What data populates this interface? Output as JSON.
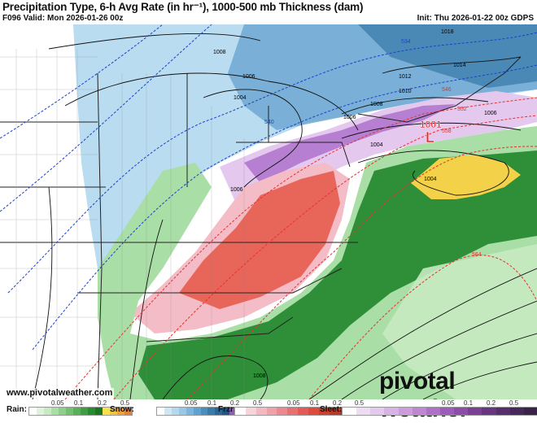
{
  "header": {
    "title": "Precipitation Type, 6-h Avg Rate (in hr⁻¹), 1000-500 mb Thickness (dam)",
    "valid": "F096 Valid: Mon 2026-01-26 00z",
    "init": "Init: Thu 2026-01-22 00z GDPS"
  },
  "map": {
    "low_center": {
      "pressure": "1001",
      "symbol": "L",
      "color": "#e8242c"
    },
    "isobar_labels": [
      "1008",
      "1006",
      "1004",
      "1018",
      "1014",
      "1012",
      "1010",
      "1008",
      "1006",
      "1006",
      "1004",
      "1006",
      "1004",
      "1008"
    ],
    "thickness_labels_cold": [
      "534",
      "540"
    ],
    "thickness_labels_warm": [
      "546",
      "552",
      "558",
      "564"
    ],
    "thickness_cold_color": "#1e3fd0",
    "thickness_warm_color": "#e8302c"
  },
  "watermark": {
    "site": "www.pivotalweather.com",
    "logo": "pivotal weather"
  },
  "legend": [
    {
      "name": "Rain:",
      "ticks": [
        "0.05",
        "0.1",
        "0.2",
        "0.5"
      ],
      "colors": [
        "#ffffff",
        "#dff3dc",
        "#c6eac2",
        "#a9dea6",
        "#8ed08b",
        "#72c070",
        "#58b058",
        "#3f9e42",
        "#2a8a30",
        "#1c7524",
        "#f6e24a",
        "#f3c43e",
        "#f0a23a",
        "#ec7d36"
      ]
    },
    {
      "name": "Snow:",
      "ticks": [
        "0.05",
        "0.1",
        "0.2",
        "0.5"
      ],
      "colors": [
        "#ffffff",
        "#cfe7f5",
        "#b4d9ef",
        "#97c8e7",
        "#7ab6dd",
        "#5ea2d0",
        "#4a8ec0",
        "#3a7aab",
        "#2c6795",
        "#1f567f",
        "#8f5fb8",
        "#a97ccb",
        "#c8a2dd",
        "#e2cbec"
      ]
    },
    {
      "name": "Frzr:",
      "ticks": [
        "0.05",
        "0.1",
        "0.2",
        "0.5"
      ],
      "colors": [
        "#ffffff",
        "#f7d3da",
        "#f3b8c2",
        "#efa0aa",
        "#ec8890",
        "#e86f72",
        "#e45a56",
        "#de4a3c",
        "#cc4030",
        "#b83a2c",
        "#a23428",
        "#8c2e24",
        "#782a22",
        "#66261f"
      ]
    },
    {
      "name": "Sleet:",
      "ticks": [
        "0.05",
        "0.1",
        "0.2",
        "0.5"
      ],
      "colors": [
        "#ffffff",
        "#eedcf3",
        "#e4c8ed",
        "#d9b3e6",
        "#cc9cdd",
        "#be86d3",
        "#af70c8",
        "#9e5cba",
        "#8c4ca8",
        "#7a4094",
        "#683680",
        "#572e6c",
        "#47285a",
        "#3a2349"
      ]
    }
  ]
}
